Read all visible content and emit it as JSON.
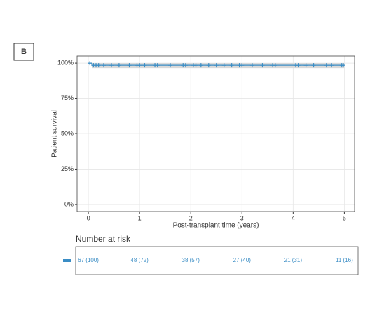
{
  "chart_data": {
    "type": "km",
    "panel_label": "B",
    "y_label": "Patient survival",
    "x_label": "Post-transplant time (years)",
    "color": "#3a8dc5",
    "band_color": "#d9d9d9",
    "grid": true,
    "xlim": [
      -0.22,
      5.2
    ],
    "ylim": [
      -5,
      105
    ],
    "xticks": [
      0,
      1,
      2,
      3,
      4,
      5
    ],
    "yticks": [
      {
        "value": 0,
        "label": "0%"
      },
      {
        "value": 25,
        "label": "25%"
      },
      {
        "value": 50,
        "label": "50%"
      },
      {
        "value": 75,
        "label": "75%"
      },
      {
        "value": 100,
        "label": "100%"
      }
    ],
    "x": [
      0,
      0.07,
      0.07,
      5
    ],
    "values": [
      100,
      100,
      98.5,
      98.5
    ],
    "ci_lower": [
      100,
      100,
      96.5,
      96.5
    ],
    "ci_upper": [
      100,
      100,
      100,
      100
    ],
    "censor_x": [
      0.03,
      0.1,
      0.15,
      0.2,
      0.3,
      0.45,
      0.6,
      0.8,
      0.95,
      1.0,
      1.1,
      1.3,
      1.35,
      1.6,
      1.85,
      1.9,
      2.05,
      2.1,
      2.2,
      2.35,
      2.5,
      2.65,
      2.8,
      2.95,
      3.0,
      3.2,
      3.4,
      3.6,
      3.65,
      4.05,
      4.1,
      4.25,
      4.4,
      4.65,
      4.75,
      4.95,
      4.98
    ],
    "censor_y": [
      100,
      98.5,
      98.5,
      98.5,
      98.5,
      98.5,
      98.5,
      98.5,
      98.5,
      98.5,
      98.5,
      98.5,
      98.5,
      98.5,
      98.5,
      98.5,
      98.5,
      98.5,
      98.5,
      98.5,
      98.5,
      98.5,
      98.5,
      98.5,
      98.5,
      98.5,
      98.5,
      98.5,
      98.5,
      98.5,
      98.5,
      98.5,
      98.5,
      98.5,
      98.5,
      98.5,
      98.5
    ],
    "risk_table": {
      "title": "Number at risk",
      "labels": [
        "67 (100)",
        "48 (72)",
        "38 (57)",
        "27 (40)",
        "21 (31)",
        "11 (16)"
      ]
    }
  }
}
